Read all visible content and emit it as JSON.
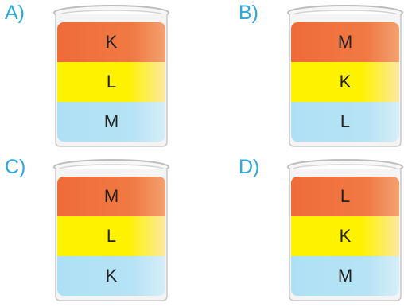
{
  "options": [
    {
      "label": "A)",
      "layers": [
        "K",
        "L",
        "M"
      ]
    },
    {
      "label": "B)",
      "layers": [
        "M",
        "K",
        "L"
      ]
    },
    {
      "label": "C)",
      "layers": [
        "M",
        "L",
        "K"
      ]
    },
    {
      "label": "D)",
      "layers": [
        "L",
        "K",
        "M"
      ]
    }
  ],
  "colors": {
    "label": "#2aa8e0",
    "layer_top": "#ef6b3a",
    "layer_middle": "#fff200",
    "layer_bottom": "#aee0f5"
  }
}
